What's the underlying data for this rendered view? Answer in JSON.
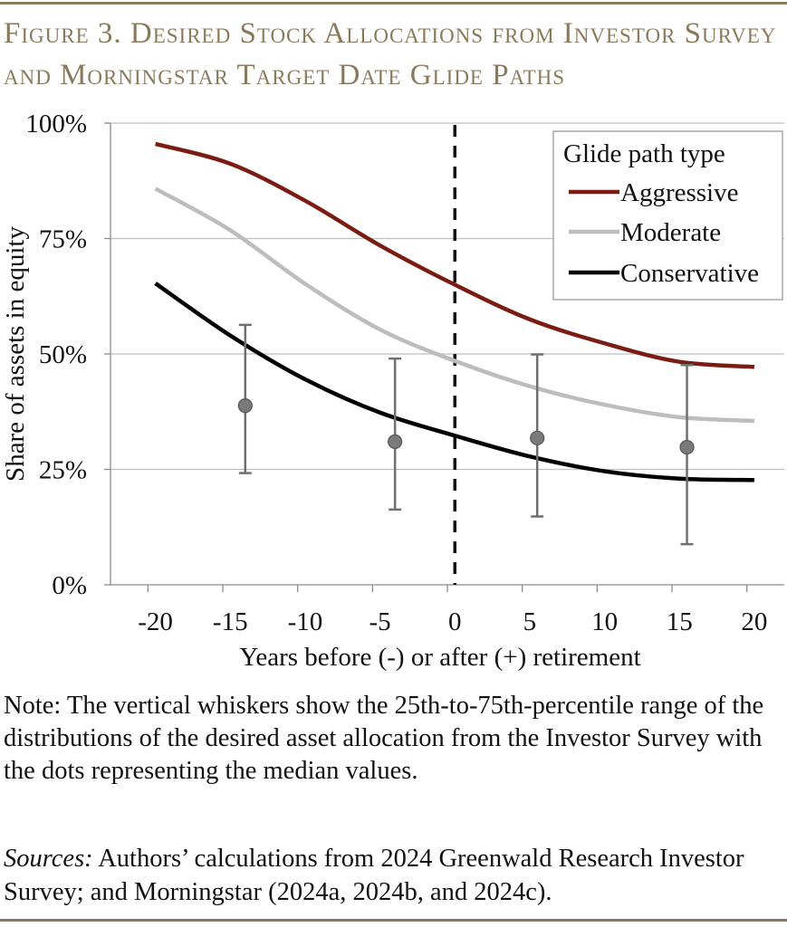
{
  "figure": {
    "title": "Figure 3. Desired Stock Allocations from Investor Survey and Morningstar Target Date Glide Paths",
    "note": "Note: The vertical whiskers show the 25th-to-75th-percentile range of the distributions of the desired asset allocation from the Investor Survey with the dots representing the median values.",
    "sources_label": "Sources:",
    "sources_text": " Authors’ calculations from 2024 Greenwald Research Investor Survey; and Morningstar (2024a, 2024b, and 2024c)."
  },
  "colors": {
    "title": "#8a7a5c",
    "aggressive": "#7b1c13",
    "moderate": "#bdbdbd",
    "conservative": "#000000",
    "whisker": "#707070",
    "dot": "#7a7a7a",
    "grid": "#bfbfbf"
  },
  "chart_data": {
    "type": "line",
    "xlabel": "Years before (-) or after (+) retirement",
    "ylabel": "Share of assets in equity",
    "xlim": [
      -23,
      22
    ],
    "ylim": [
      0,
      100
    ],
    "x_ticks": [
      -20,
      -15,
      -10,
      -5,
      0,
      5,
      10,
      15,
      20
    ],
    "x_tick_labels": [
      "-20",
      "-15",
      "-10",
      "-5",
      "0",
      "5",
      "10",
      "15",
      "20"
    ],
    "y_ticks": [
      0,
      25,
      50,
      75,
      100
    ],
    "y_tick_labels": [
      "0%",
      "25%",
      "50%",
      "75%",
      "100%"
    ],
    "grid": "horizontal",
    "retirement_line_x": 0,
    "legend": {
      "title": "Glide path type",
      "position": "top-right"
    },
    "x": [
      -20,
      -15,
      -10,
      -5,
      0,
      5,
      10,
      15,
      20
    ],
    "series": [
      {
        "name": "Aggressive",
        "color": "#7b1c13",
        "values": [
          95.5,
          91.2,
          83.2,
          73.5,
          65.0,
          57.5,
          52.3,
          48.3,
          47.2
        ]
      },
      {
        "name": "Moderate",
        "color": "#bdbdbd",
        "values": [
          85.8,
          76.8,
          65.2,
          55.3,
          48.5,
          43.0,
          39.0,
          36.3,
          35.5
        ]
      },
      {
        "name": "Conservative",
        "color": "#000000",
        "values": [
          65.3,
          54.0,
          44.5,
          37.3,
          32.3,
          27.8,
          24.6,
          23.0,
          22.7
        ]
      }
    ],
    "survey": {
      "x": [
        -14,
        -4,
        5.5,
        15.5
      ],
      "median": [
        38.8,
        31.0,
        31.8,
        29.8
      ],
      "p25": [
        24.2,
        16.3,
        14.8,
        8.8
      ],
      "p75": [
        56.3,
        49.0,
        49.9,
        47.6
      ]
    }
  }
}
